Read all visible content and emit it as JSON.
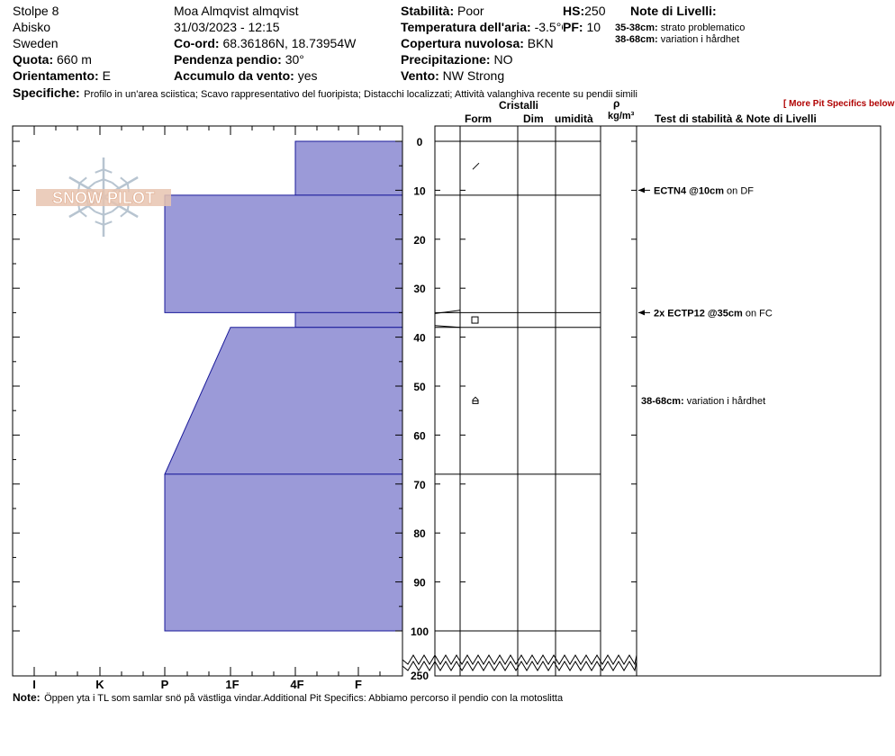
{
  "header": {
    "location": [
      "Stolpe 8",
      "Abisko",
      "Sweden"
    ],
    "observer": "Moa Almqvist almqvist",
    "datetime": "31/03/2023 - 12:15",
    "coord": {
      "label": "Co-ord:",
      "value": "68.36186N, 18.73954W"
    },
    "elevation": {
      "label": "Quota:",
      "value": "660 m"
    },
    "slope": {
      "label": "Pendenza pendio:",
      "value": "30°"
    },
    "aspect": {
      "label": "Orientamento:",
      "value": "E"
    },
    "wind_loading": {
      "label": "Accumulo da vento:",
      "value": "yes"
    },
    "stability": {
      "label": "Stabilità:",
      "value": "Poor"
    },
    "air_temp": {
      "label": "Temperatura dell'aria:",
      "value": "-3.5°C"
    },
    "sky": {
      "label": "Copertura nuvolosa:",
      "value": "BKN"
    },
    "precip": {
      "label": "Precipitazione:",
      "value": "NO"
    },
    "wind": {
      "label": "Vento:",
      "value": "NW Strong"
    },
    "hs": {
      "label": "HS:",
      "value": "250"
    },
    "pf": {
      "label": "PF:",
      "value": "10"
    },
    "layer_notes_title": "Note di Livelli:",
    "layer_notes": [
      {
        "range": "35-38cm:",
        "text": "strato problematico"
      },
      {
        "range": "38-68cm:",
        "text": "variation i hårdhet"
      }
    ],
    "specifics": {
      "label": "Specifiche:",
      "value": "Profilo in un'area sciistica; Scavo rappresentativo del fuoripista; Distacchi localizzati; Attività valanghiva recente su pendii simili"
    }
  },
  "columns": {
    "crystals": "Cristalli",
    "form": "Form",
    "size": "Dim",
    "moisture": "umidità",
    "rho": "ρ",
    "density_unit": "kg/m³",
    "stability_tests": "Test di stabilità & Note di Livelli",
    "more_specifics": "[ More Pit Specifics below ]"
  },
  "logo_text": "SNOW PILOT",
  "chart_data": {
    "type": "bar",
    "title": "",
    "hardness_scale": [
      "I",
      "K",
      "P",
      "1F",
      "4F",
      "F"
    ],
    "depth_ticks": [
      0,
      10,
      20,
      30,
      40,
      50,
      60,
      70,
      80,
      90,
      100
    ],
    "depth_bottom_label": "250",
    "ylim": [
      0,
      100
    ],
    "layers": [
      {
        "top": 0,
        "bottom": 11,
        "hardness_top": "4F",
        "hardness_bottom": "4F"
      },
      {
        "top": 11,
        "bottom": 35,
        "hardness_top": "P",
        "hardness_bottom": "P"
      },
      {
        "top": 35,
        "bottom": 38,
        "hardness_top": "4F",
        "hardness_bottom": "4F"
      },
      {
        "top": 38,
        "bottom": 68,
        "hardness_top": "1F",
        "hardness_bottom": "P"
      },
      {
        "top": 68,
        "bottom": 100,
        "hardness_top": "P",
        "hardness_bottom": "P"
      }
    ],
    "layer_boundaries": [
      0,
      11,
      35,
      38,
      68,
      100
    ],
    "crystal_symbols": [
      {
        "depth": 5,
        "symbol": "/"
      },
      {
        "depth": 36.5,
        "symbol": "□"
      },
      {
        "depth": 53,
        "symbol": "⌂"
      }
    ],
    "tests": [
      {
        "depth": 10,
        "label": "ECTN4 @10cm",
        "suffix": "on DF"
      },
      {
        "depth": 35,
        "label": "2x ECTP12 @35cm",
        "suffix": "on FC"
      }
    ],
    "layer_comments": [
      {
        "depth": 54,
        "range": "38-68cm:",
        "text": "variation i hårdhet"
      }
    ]
  },
  "note": {
    "label": "Note:",
    "value": "Öppen yta i TL som samlar snö på västliga vindar.Additional Pit Specifics: Abbiamo percorso il pendio con la motoslitta"
  },
  "colors": {
    "layer_fill": "#9b9ad8",
    "layer_stroke": "#1a1a9a",
    "logo": "#e8c4b0"
  }
}
